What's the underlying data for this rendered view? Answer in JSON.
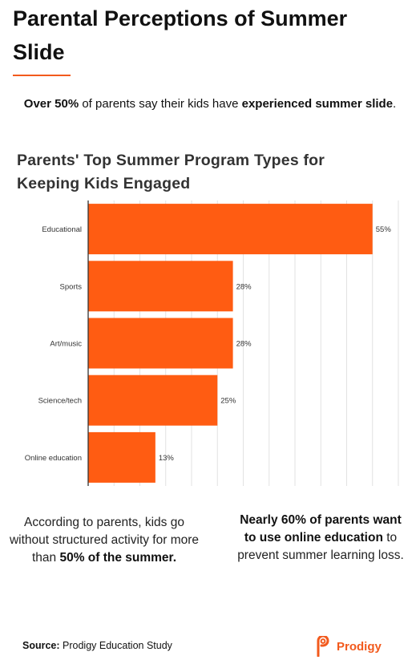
{
  "header": {
    "title": "Parental Perceptions of Summer Slide"
  },
  "intro": {
    "part1": "Over 50%",
    "part2": " of parents say their kids have ",
    "part3": "experienced summer slide",
    "part4": "."
  },
  "chart_data": {
    "type": "bar",
    "orientation": "horizontal",
    "title": "Parents' Top Summer Program Types for Keeping Kids Engaged",
    "categories": [
      "Educational",
      "Sports",
      "Art/music",
      "Science/tech",
      "Online education"
    ],
    "values": [
      55,
      28,
      28,
      25,
      13
    ],
    "value_labels": [
      "55%",
      "28%",
      "28%",
      "25%",
      "13%"
    ],
    "xlim": [
      0,
      60
    ],
    "grid": true,
    "bar_color": "#FF5C12"
  },
  "notes": {
    "left_part1": "According to parents, kids go without structured activity for more than ",
    "left_part2": "50% of the summer.",
    "right_part1": "Nearly 60% of parents want to use online education",
    "right_part2": " to prevent summer learning loss."
  },
  "footer": {
    "source_label": "Source:",
    "source_text": " Prodigy Education Study",
    "brand_name": "Prodigy",
    "brand_icon": "prodigy-logo-icon",
    "brand_color": "#F25A1D"
  }
}
